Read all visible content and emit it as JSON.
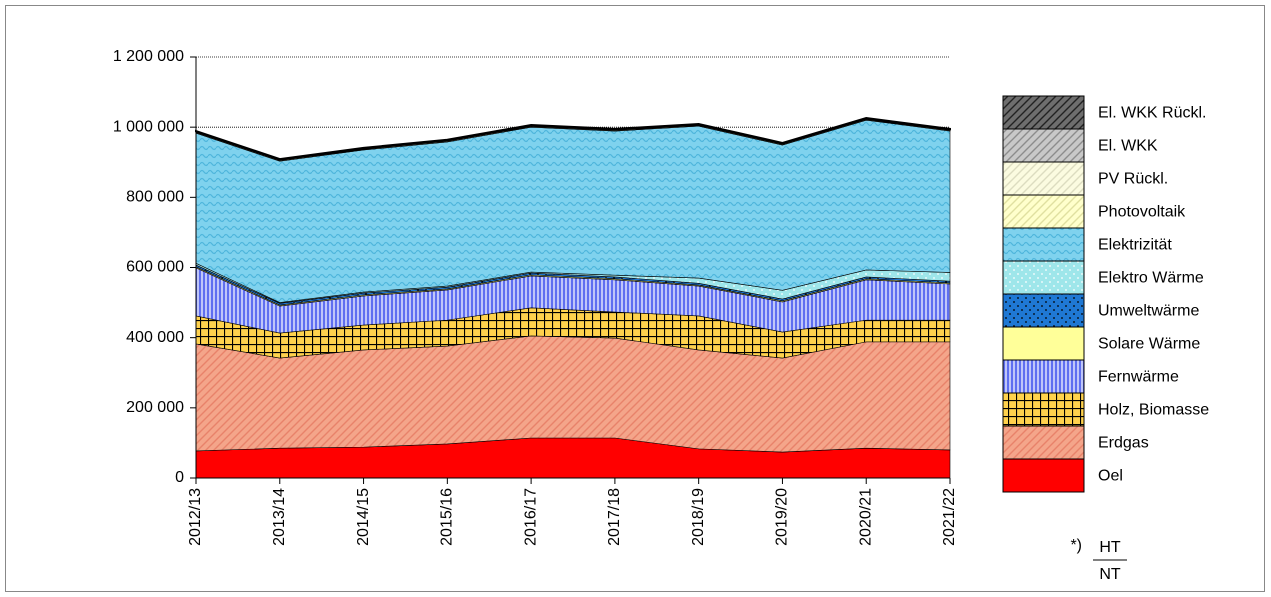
{
  "chart_data": {
    "type": "stacked_area",
    "categories": [
      "2012/13",
      "2013/14",
      "2014/15",
      "2015/16",
      "2016/17",
      "2017/18",
      "2018/19",
      "2019/20",
      "2020/21",
      "2021/22"
    ],
    "series": [
      {
        "name": "Oel",
        "color": "#ff0000",
        "values": [
          77000,
          85000,
          88000,
          97000,
          114000,
          114000,
          83000,
          74000,
          85000,
          80000
        ]
      },
      {
        "name": "Erdgas",
        "color": "#f4a58a",
        "values": [
          305000,
          257000,
          277000,
          279000,
          291000,
          285000,
          282000,
          268000,
          303000,
          308000
        ]
      },
      {
        "name": "Holz, Biomasse",
        "color": "#ffd24d",
        "values": [
          80000,
          71000,
          71000,
          74000,
          80000,
          74000,
          97000,
          74000,
          62000,
          62000
        ]
      },
      {
        "name": "Fernwärme",
        "color": "#5f6ff0",
        "values": [
          137000,
          77000,
          83000,
          86000,
          91000,
          92000,
          85000,
          86000,
          115000,
          103000
        ]
      },
      {
        "name": "Solare Wärme",
        "color": "#ffff99",
        "values": [
          3000,
          3000,
          3000,
          3000,
          3000,
          3000,
          3000,
          3000,
          3000,
          3000
        ]
      },
      {
        "name": "Umweltwärme",
        "color": "#1f78d4",
        "values": [
          5000,
          5000,
          5000,
          5000,
          5000,
          5000,
          5000,
          5000,
          5000,
          5000
        ]
      },
      {
        "name": "Elektro Wärme",
        "color": "#9ee6ea",
        "values": [
          5000,
          2000,
          3000,
          3000,
          3000,
          5000,
          15000,
          25000,
          20000,
          25000
        ]
      },
      {
        "name": "Elektrizität",
        "color": "#7fd2ee",
        "values": [
          371000,
          403000,
          405000,
          411000,
          413000,
          411000,
          433000,
          414000,
          427000,
          403000
        ]
      },
      {
        "name": "Photovoltaik",
        "color": "#ffffcc",
        "values": [
          2000,
          2000,
          2000,
          2000,
          2000,
          2000,
          2000,
          2000,
          2000,
          2000
        ]
      },
      {
        "name": "PV Rückl.",
        "color": "#fbfbe0",
        "values": [
          1000,
          1000,
          1000,
          1000,
          1000,
          1000,
          1000,
          1000,
          1000,
          1000
        ]
      },
      {
        "name": "El. WKK",
        "color": "#c8c8c8",
        "values": [
          2000,
          2000,
          2000,
          2000,
          2000,
          2000,
          2000,
          2000,
          2000,
          2000
        ]
      },
      {
        "name": "El. WKK Rückl.",
        "color": "#6e6e6e",
        "values": [
          1000,
          1000,
          1000,
          1000,
          1000,
          1000,
          1000,
          1000,
          1000,
          1000
        ]
      }
    ],
    "ylim": [
      0,
      1200000
    ],
    "yticks": [
      0,
      {
        "value": 200000,
        "label": "200 000"
      },
      {
        "value": 400000,
        "label": "400 000"
      },
      {
        "value": 600000,
        "label": "600 000"
      },
      {
        "value": 800000,
        "label": "800 000"
      },
      {
        "value": 1000000,
        "label": "1 000 000"
      },
      {
        "value": 1200000,
        "label": "1 200 000"
      }
    ],
    "grid": true,
    "legend": "right",
    "footnote": {
      "marker": "*)",
      "numerator": "HT",
      "denominator": "NT"
    }
  }
}
